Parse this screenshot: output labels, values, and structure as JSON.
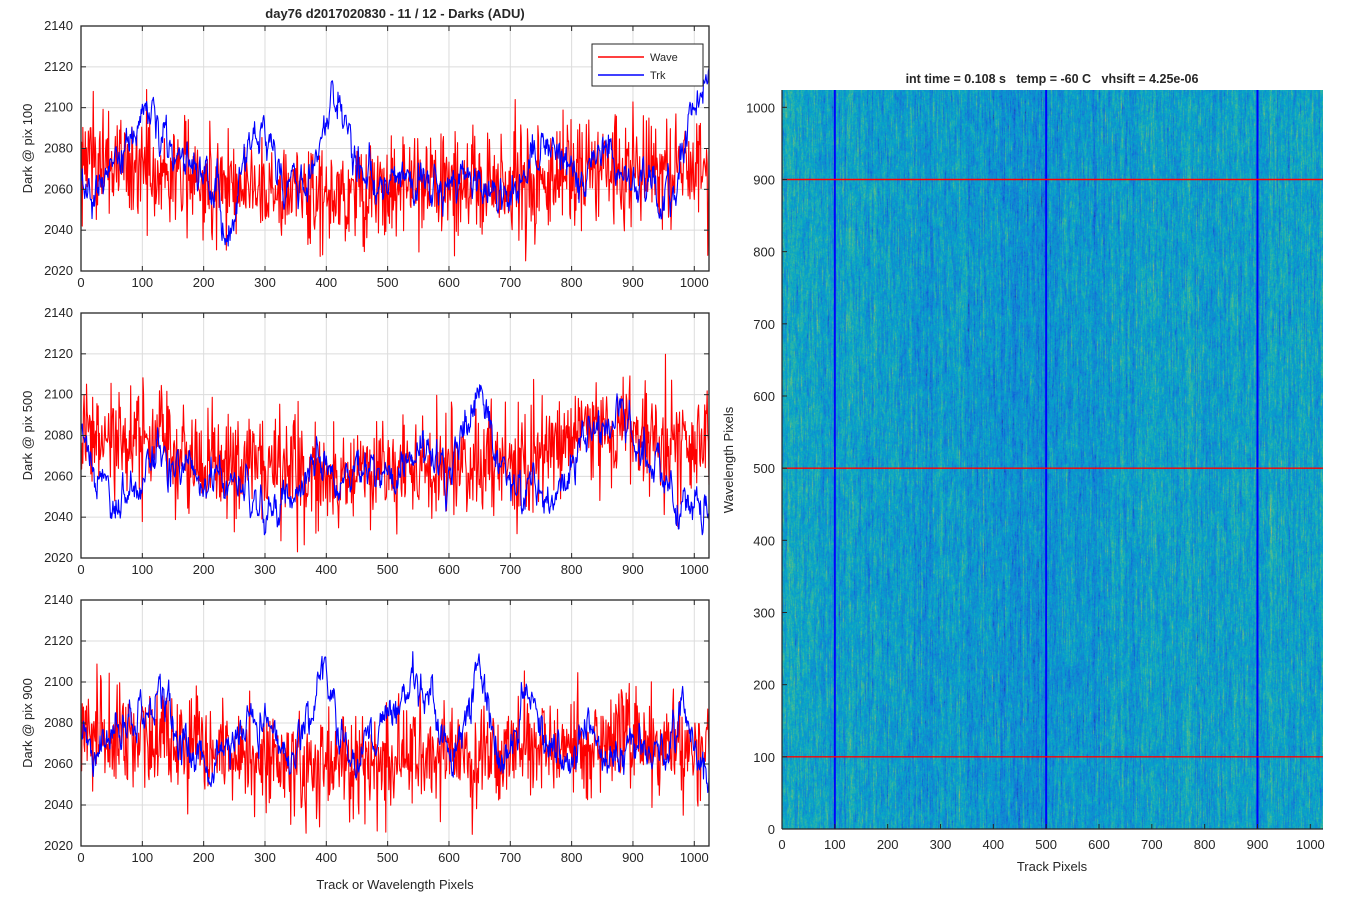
{
  "figure": {
    "left_title": "day76 d2017020830 - 11 / 12 - Darks (ADU)",
    "right_title": "int time = 0.108 s   temp = -60 C   vhsift = 4.25e-06",
    "left_xlabel": "Track or Wavelength Pixels",
    "right_xlabel": "Track Pixels",
    "right_ylabel": "Wavelength Pixels"
  },
  "colors": {
    "wave": "#ff0000",
    "trk": "#0000ff",
    "grid": "#dcdcdc",
    "axis": "#262626"
  },
  "chart_data": [
    {
      "type": "line",
      "title": "day76 d2017020830 - 11 / 12 - Darks (ADU)",
      "ylabel": "Dark @ pix 100",
      "xlim": [
        0,
        1024
      ],
      "ylim": [
        2020,
        2140
      ],
      "xticks": [
        0,
        100,
        200,
        300,
        400,
        500,
        600,
        700,
        800,
        900,
        1000
      ],
      "yticks": [
        2020,
        2040,
        2060,
        2080,
        2100,
        2120,
        2140
      ],
      "grid": true,
      "legend": {
        "position": "top-right",
        "entries": [
          "Wave",
          "Trk"
        ]
      },
      "series": [
        {
          "name": "Wave",
          "color": "#ff0000",
          "noise": 13,
          "knots_x": [
            0,
            100,
            200,
            300,
            400,
            500,
            600,
            700,
            800,
            900,
            1024
          ],
          "knots_y": [
            2075,
            2070,
            2065,
            2060,
            2058,
            2060,
            2062,
            2062,
            2068,
            2072,
            2070
          ]
        },
        {
          "name": "Trk",
          "color": "#0000ff",
          "noise": 4,
          "knots_x": [
            0,
            30,
            60,
            110,
            150,
            180,
            220,
            240,
            280,
            300,
            330,
            370,
            400,
            430,
            450,
            480,
            520,
            560,
            600,
            640,
            660,
            700,
            740,
            780,
            820,
            860,
            880,
            920,
            960,
            1000,
            1024
          ],
          "knots_y": [
            2062,
            2055,
            2075,
            2100,
            2080,
            2075,
            2060,
            2038,
            2080,
            2085,
            2062,
            2065,
            2095,
            2100,
            2070,
            2060,
            2070,
            2062,
            2065,
            2068,
            2062,
            2052,
            2078,
            2075,
            2060,
            2082,
            2070,
            2062,
            2055,
            2100,
            2118
          ]
        }
      ]
    },
    {
      "type": "line",
      "ylabel": "Dark @ pix 500",
      "xlim": [
        0,
        1024
      ],
      "ylim": [
        2020,
        2140
      ],
      "xticks": [
        0,
        100,
        200,
        300,
        400,
        500,
        600,
        700,
        800,
        900,
        1000
      ],
      "yticks": [
        2020,
        2040,
        2060,
        2080,
        2100,
        2120,
        2140
      ],
      "grid": true,
      "series": [
        {
          "name": "Wave",
          "color": "#ff0000",
          "noise": 13,
          "knots_x": [
            0,
            100,
            200,
            300,
            400,
            500,
            600,
            700,
            800,
            900,
            1024
          ],
          "knots_y": [
            2078,
            2074,
            2068,
            2062,
            2062,
            2064,
            2066,
            2064,
            2080,
            2080,
            2074
          ]
        },
        {
          "name": "Trk",
          "color": "#0000ff",
          "noise": 4,
          "knots_x": [
            0,
            20,
            60,
            100,
            150,
            200,
            250,
            300,
            340,
            380,
            420,
            460,
            500,
            560,
            600,
            650,
            680,
            720,
            780,
            820,
            880,
            930,
            980,
            1024
          ],
          "knots_y": [
            2080,
            2065,
            2045,
            2058,
            2072,
            2060,
            2058,
            2040,
            2050,
            2068,
            2058,
            2068,
            2060,
            2080,
            2062,
            2100,
            2070,
            2055,
            2050,
            2075,
            2090,
            2065,
            2050,
            2048
          ]
        }
      ]
    },
    {
      "type": "line",
      "ylabel": "Dark @ pix 900",
      "xlabel": "Track or Wavelength Pixels",
      "xlim": [
        0,
        1024
      ],
      "ylim": [
        2020,
        2140
      ],
      "xticks": [
        0,
        100,
        200,
        300,
        400,
        500,
        600,
        700,
        800,
        900,
        1000
      ],
      "yticks": [
        2020,
        2040,
        2060,
        2080,
        2100,
        2120,
        2140
      ],
      "grid": true,
      "series": [
        {
          "name": "Wave",
          "color": "#ff0000",
          "noise": 13,
          "knots_x": [
            0,
            100,
            200,
            300,
            400,
            500,
            600,
            700,
            800,
            900,
            1024
          ],
          "knots_y": [
            2078,
            2072,
            2066,
            2062,
            2058,
            2062,
            2064,
            2066,
            2068,
            2070,
            2068
          ]
        },
        {
          "name": "Trk",
          "color": "#0000ff",
          "noise": 4,
          "knots_x": [
            0,
            30,
            60,
            100,
            130,
            170,
            210,
            250,
            300,
            340,
            370,
            395,
            420,
            450,
            490,
            540,
            570,
            590,
            620,
            650,
            680,
            700,
            720,
            760,
            790,
            830,
            860,
            900,
            940,
            980,
            1024
          ],
          "knots_y": [
            2075,
            2062,
            2085,
            2080,
            2095,
            2070,
            2058,
            2070,
            2080,
            2062,
            2080,
            2112,
            2075,
            2062,
            2080,
            2100,
            2095,
            2065,
            2075,
            2108,
            2062,
            2070,
            2098,
            2072,
            2058,
            2078,
            2058,
            2072,
            2062,
            2085,
            2048
          ]
        }
      ]
    },
    {
      "type": "heatmap",
      "title": "int time = 0.108 s   temp = -60 C   vhsift = 4.25e-06",
      "xlabel": "Track Pixels",
      "ylabel": "Wavelength Pixels",
      "xlim": [
        0,
        1024
      ],
      "ylim": [
        0,
        1024
      ],
      "xticks": [
        0,
        100,
        200,
        300,
        400,
        500,
        600,
        700,
        800,
        900,
        1000
      ],
      "yticks": [
        0,
        100,
        200,
        300,
        400,
        500,
        600,
        700,
        800,
        900,
        1000
      ],
      "colormap": "parula",
      "vertical_markers": [
        100,
        500,
        900
      ],
      "horizontal_markers": [
        100,
        500,
        900
      ],
      "vertical_marker_color": "#0000ff",
      "horizontal_marker_color": "#ff0000"
    }
  ]
}
